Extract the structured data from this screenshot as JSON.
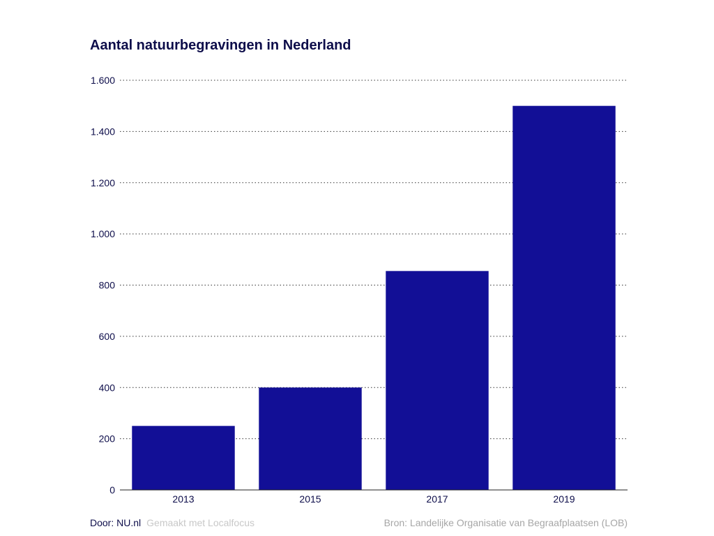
{
  "chart_data": {
    "type": "bar",
    "title": "Aantal natuurbegravingen in Nederland",
    "categories": [
      "2013",
      "2015",
      "2017",
      "2019"
    ],
    "values": [
      250,
      400,
      855,
      1500
    ],
    "ylim": [
      0,
      1600
    ],
    "yticks": [
      {
        "value": 0,
        "label": "0"
      },
      {
        "value": 200,
        "label": "200"
      },
      {
        "value": 400,
        "label": "400"
      },
      {
        "value": 600,
        "label": "600"
      },
      {
        "value": 800,
        "label": "800"
      },
      {
        "value": 1000,
        "label": "1.000"
      },
      {
        "value": 1200,
        "label": "1.200"
      },
      {
        "value": 1400,
        "label": "1.400"
      },
      {
        "value": 1600,
        "label": "1.600"
      }
    ],
    "xlabel": "",
    "ylabel": "",
    "grid": true,
    "bar_color": "#120f96"
  },
  "footer": {
    "author": "Door: NU.nl",
    "made_with": "Gemaakt met Localfocus",
    "source": "Bron: Landelijke Organisatie van Begraafplaatsen (LOB)"
  }
}
